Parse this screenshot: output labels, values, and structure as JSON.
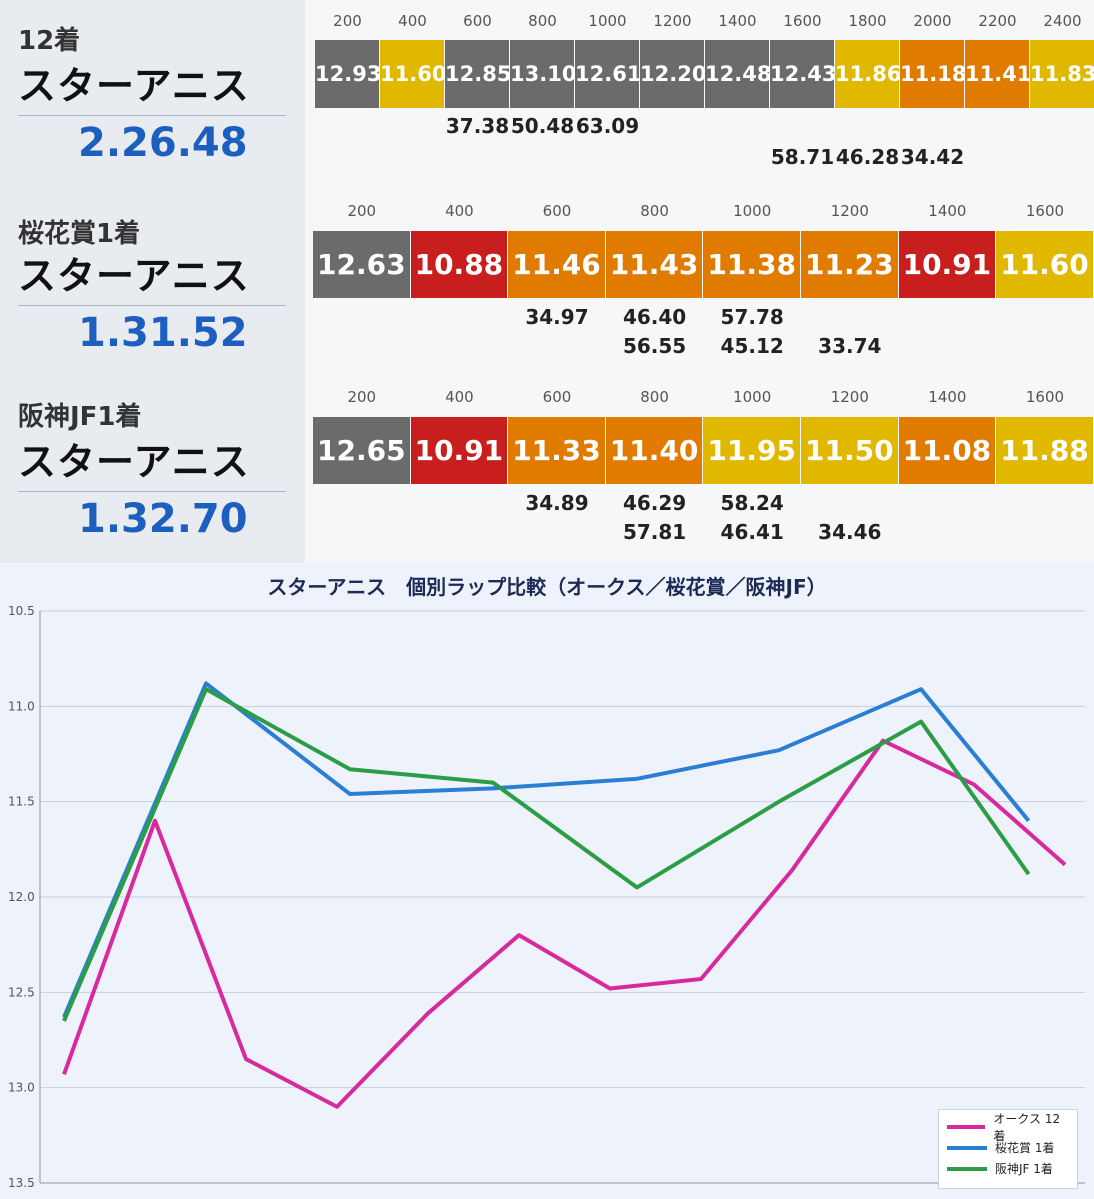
{
  "races": [
    {
      "title": "12着",
      "horse": "スターアニス",
      "time": "2.26.48",
      "distances": [
        "200",
        "400",
        "600",
        "800",
        "1000",
        "1200",
        "1400",
        "1600",
        "1800",
        "2000",
        "2200",
        "2400"
      ],
      "laps": [
        {
          "v": "12.93",
          "c": "#6b6b6b"
        },
        {
          "v": "11.60",
          "c": "#e0b800"
        },
        {
          "v": "12.85",
          "c": "#6b6b6b"
        },
        {
          "v": "13.10",
          "c": "#6b6b6b"
        },
        {
          "v": "12.61",
          "c": "#6b6b6b"
        },
        {
          "v": "12.20",
          "c": "#6b6b6b"
        },
        {
          "v": "12.48",
          "c": "#6b6b6b"
        },
        {
          "v": "12.43",
          "c": "#6b6b6b"
        },
        {
          "v": "11.86",
          "c": "#e0b800"
        },
        {
          "v": "11.18",
          "c": "#e07b00"
        },
        {
          "v": "11.41",
          "c": "#e07b00"
        },
        {
          "v": "11.83",
          "c": "#e0b800"
        }
      ],
      "subs_row1": [
        {
          "col": 2,
          "v": "37.38"
        },
        {
          "col": 3,
          "v": "50.48"
        },
        {
          "col": 4,
          "v": "63.09"
        }
      ],
      "subs_row2": [
        {
          "col": 7,
          "v": "58.71"
        },
        {
          "col": 8,
          "v": "46.28"
        },
        {
          "col": 9,
          "v": "34.42"
        }
      ]
    },
    {
      "title": "桜花賞1着",
      "horse": "スターアニス",
      "time": "1.31.52",
      "distances": [
        "200",
        "400",
        "600",
        "800",
        "1000",
        "1200",
        "1400",
        "1600"
      ],
      "laps": [
        {
          "v": "12.63",
          "c": "#6b6b6b"
        },
        {
          "v": "10.88",
          "c": "#c81e1e"
        },
        {
          "v": "11.46",
          "c": "#e07b00"
        },
        {
          "v": "11.43",
          "c": "#e07b00"
        },
        {
          "v": "11.38",
          "c": "#e07b00"
        },
        {
          "v": "11.23",
          "c": "#e07b00"
        },
        {
          "v": "10.91",
          "c": "#c81e1e"
        },
        {
          "v": "11.60",
          "c": "#e0b800"
        }
      ],
      "subs_row1": [
        {
          "col": 2,
          "v": "34.97"
        },
        {
          "col": 3,
          "v": "46.40"
        },
        {
          "col": 4,
          "v": "57.78"
        }
      ],
      "subs_row2": [
        {
          "col": 3,
          "v": "56.55"
        },
        {
          "col": 4,
          "v": "45.12"
        },
        {
          "col": 5,
          "v": "33.74"
        }
      ]
    },
    {
      "title": "阪神JF1着",
      "horse": "スターアニス",
      "time": "1.32.70",
      "distances": [
        "200",
        "400",
        "600",
        "800",
        "1000",
        "1200",
        "1400",
        "1600"
      ],
      "laps": [
        {
          "v": "12.65",
          "c": "#6b6b6b"
        },
        {
          "v": "10.91",
          "c": "#c81e1e"
        },
        {
          "v": "11.33",
          "c": "#e07b00"
        },
        {
          "v": "11.40",
          "c": "#e07b00"
        },
        {
          "v": "11.95",
          "c": "#e0b800"
        },
        {
          "v": "11.50",
          "c": "#e0b800"
        },
        {
          "v": "11.08",
          "c": "#e07b00"
        },
        {
          "v": "11.88",
          "c": "#e0b800"
        }
      ],
      "subs_row1": [
        {
          "col": 2,
          "v": "34.89"
        },
        {
          "col": 3,
          "v": "46.29"
        },
        {
          "col": 4,
          "v": "58.24"
        }
      ],
      "subs_row2": [
        {
          "col": 3,
          "v": "57.81"
        },
        {
          "col": 4,
          "v": "46.41"
        },
        {
          "col": 5,
          "v": "34.46"
        }
      ]
    }
  ],
  "chart_data": {
    "type": "line",
    "title": "スターアニス　個別ラップ比較（オークス／桜花賞／阪神JF）",
    "ylim": [
      10.5,
      13.5
    ],
    "y_inverted": true,
    "yticks": [
      "10.5",
      "11.0",
      "11.5",
      "12.0",
      "12.5",
      "13.0",
      "13.5"
    ],
    "grid": true,
    "legend_position": "bottom-right",
    "series": [
      {
        "name": "オークス 12着",
        "color": "#d62a9e",
        "values": [
          12.93,
          11.6,
          12.85,
          13.1,
          12.61,
          12.2,
          12.48,
          12.43,
          11.86,
          11.18,
          11.41,
          11.83
        ]
      },
      {
        "name": "桜花賞 1着",
        "color": "#2a7fd4",
        "values": [
          12.63,
          10.88,
          11.46,
          11.43,
          11.38,
          11.23,
          10.91,
          11.6
        ]
      },
      {
        "name": "阪神JF 1着",
        "color": "#2a9d45",
        "values": [
          12.65,
          10.91,
          11.33,
          11.4,
          11.95,
          11.5,
          11.08,
          11.88
        ]
      }
    ]
  }
}
